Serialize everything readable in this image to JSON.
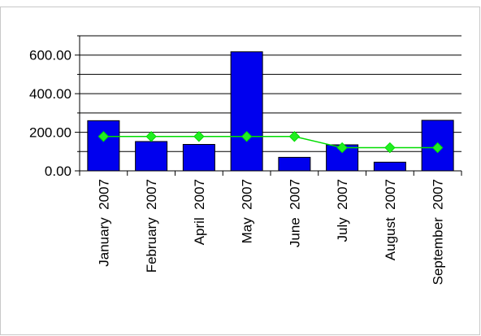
{
  "colors": {
    "bar": "#0000ee",
    "bar_stroke": "#000000",
    "line": "#00dd00",
    "marker": "#22ee22",
    "grid": "#000000",
    "frame": "#c8c8c8"
  },
  "chart_data": {
    "type": "bar",
    "title": "",
    "categories": [
      "January  2007",
      "February  2007",
      "April  2007",
      "May  2007",
      "June  2007",
      "July  2007",
      "August  2007",
      "September  2007"
    ],
    "series": [
      {
        "type": "bar",
        "values": [
          260,
          152,
          137,
          617,
          70,
          135,
          45,
          262
        ]
      },
      {
        "type": "line",
        "marker": "diamond",
        "values": [
          178,
          178,
          178,
          178,
          178,
          120,
          120,
          120
        ]
      }
    ],
    "ylim": [
      0,
      700
    ],
    "yticks": [
      0,
      200,
      400,
      600
    ],
    "ytick_labels": [
      "0.00",
      "200.00",
      "400.00",
      "600.00"
    ],
    "grid": true,
    "legend": "none"
  }
}
